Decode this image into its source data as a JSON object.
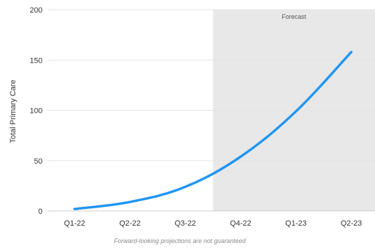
{
  "chart_data": {
    "type": "line",
    "categories": [
      "Q1-22",
      "Q2-22",
      "Q3-22",
      "Q4-22",
      "Q1-23",
      "Q2-23"
    ],
    "series": [
      {
        "values": [
          2,
          9,
          24,
          54,
          99,
          158
        ],
        "color": "#2196f3"
      }
    ],
    "title": "",
    "xlabel": "",
    "ylabel": "Total Primary Care",
    "ylim": [
      0,
      200
    ],
    "yticks": [
      0,
      50,
      100,
      150,
      200
    ],
    "grid": true,
    "forecast_region": {
      "label": "Forecast",
      "start_x": 2.5,
      "end_x": 5.5,
      "color": "#e8e8e8"
    },
    "footnote": "Forward-looking projections are not guaranteed"
  }
}
